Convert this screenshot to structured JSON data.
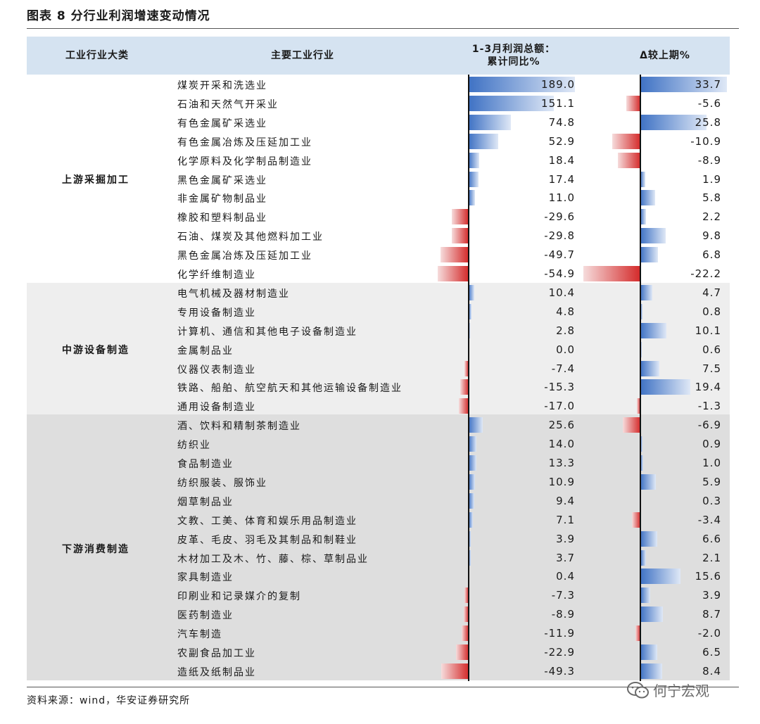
{
  "title": "图表 8 分行业利润增速变动情况",
  "headers": {
    "category": "工业行业大类",
    "industry": "主要工业行业",
    "col1_line1": "1-3月利润总额：",
    "col1_line2": "累计同比%",
    "col2": "Δ较上期%"
  },
  "groups": [
    {
      "label": "上游采掘加工",
      "rows": 11
    },
    {
      "label": "中游设备制造",
      "rows": 7
    },
    {
      "label": "下游消费制造",
      "rows": 14
    }
  ],
  "colors": {
    "positive": "#3f72c4",
    "negative": "#d42a2a",
    "header_bg": "#d5e3f1",
    "midstream_bg": "#eeeeee",
    "downstream_bg": "#dedede"
  },
  "chart_data": {
    "type": "table",
    "columns": [
      "工业行业大类",
      "主要工业行业",
      "1-3月利润总额：累计同比%",
      "Δ较上期%"
    ],
    "bar_scale": {
      "col1_max_abs": 189.0,
      "col2_max_abs": 33.7
    },
    "rows": [
      {
        "group": "上游采掘加工",
        "name": "煤炭开采和洗选业",
        "yoy": 189.0,
        "delta": 33.7
      },
      {
        "group": "上游采掘加工",
        "name": "石油和天然气开采业",
        "yoy": 151.1,
        "delta": -5.6
      },
      {
        "group": "上游采掘加工",
        "name": "有色金属矿采选业",
        "yoy": 74.8,
        "delta": 25.8
      },
      {
        "group": "上游采掘加工",
        "name": "有色金属冶炼及压延加工业",
        "yoy": 52.9,
        "delta": -10.9
      },
      {
        "group": "上游采掘加工",
        "name": "化学原料及化学制品制造业",
        "yoy": 18.4,
        "delta": -8.9
      },
      {
        "group": "上游采掘加工",
        "name": "黑色金属矿采选业",
        "yoy": 17.4,
        "delta": 1.9
      },
      {
        "group": "上游采掘加工",
        "name": "非金属矿物制品业",
        "yoy": 11.0,
        "delta": 5.8
      },
      {
        "group": "上游采掘加工",
        "name": "橡胶和塑料制品业",
        "yoy": -29.6,
        "delta": 2.2
      },
      {
        "group": "上游采掘加工",
        "name": "石油、煤炭及其他燃料加工业",
        "yoy": -29.8,
        "delta": 9.8
      },
      {
        "group": "上游采掘加工",
        "name": "黑色金属冶炼及压延加工业",
        "yoy": -49.7,
        "delta": 6.8
      },
      {
        "group": "上游采掘加工",
        "name": "化学纤维制造业",
        "yoy": -54.9,
        "delta": -22.2
      },
      {
        "group": "中游设备制造",
        "name": "电气机械及器材制造业",
        "yoy": 10.4,
        "delta": 4.7
      },
      {
        "group": "中游设备制造",
        "name": "专用设备制造业",
        "yoy": 4.8,
        "delta": 0.8
      },
      {
        "group": "中游设备制造",
        "name": "计算机、通信和其他电子设备制造业",
        "yoy": 2.8,
        "delta": 10.1
      },
      {
        "group": "中游设备制造",
        "name": "金属制品业",
        "yoy": 0.0,
        "delta": 0.6
      },
      {
        "group": "中游设备制造",
        "name": "仪器仪表制造业",
        "yoy": -7.4,
        "delta": 7.5
      },
      {
        "group": "中游设备制造",
        "name": "铁路、船舶、航空航天和其他运输设备制造业",
        "yoy": -15.3,
        "delta": 19.4
      },
      {
        "group": "中游设备制造",
        "name": "通用设备制造业",
        "yoy": -17.0,
        "delta": -1.3
      },
      {
        "group": "下游消费制造",
        "name": "酒、饮料和精制茶制造业",
        "yoy": 25.6,
        "delta": -6.9
      },
      {
        "group": "下游消费制造",
        "name": "纺织业",
        "yoy": 14.0,
        "delta": 0.9
      },
      {
        "group": "下游消费制造",
        "name": "食品制造业",
        "yoy": 13.3,
        "delta": 1.0
      },
      {
        "group": "下游消费制造",
        "name": "纺织服装、服饰业",
        "yoy": 10.9,
        "delta": 5.9
      },
      {
        "group": "下游消费制造",
        "name": "烟草制品业",
        "yoy": 9.4,
        "delta": 0.3
      },
      {
        "group": "下游消费制造",
        "name": "文教、工美、体育和娱乐用品制造业",
        "yoy": 7.1,
        "delta": -3.4
      },
      {
        "group": "下游消费制造",
        "name": "皮革、毛皮、羽毛及其制品和制鞋业",
        "yoy": 3.9,
        "delta": 6.6
      },
      {
        "group": "下游消费制造",
        "name": "木材加工及木、竹、藤、棕、草制品业",
        "yoy": 3.7,
        "delta": 2.1
      },
      {
        "group": "下游消费制造",
        "name": "家具制造业",
        "yoy": 0.4,
        "delta": 15.6
      },
      {
        "group": "下游消费制造",
        "name": "印刷业和记录媒介的复制",
        "yoy": -7.3,
        "delta": 3.9
      },
      {
        "group": "下游消费制造",
        "name": "医药制造业",
        "yoy": -8.9,
        "delta": 8.7
      },
      {
        "group": "下游消费制造",
        "name": "汽车制造",
        "yoy": -11.9,
        "delta": -2.0
      },
      {
        "group": "下游消费制造",
        "name": "农副食品加工业",
        "yoy": -22.9,
        "delta": 6.5
      },
      {
        "group": "下游消费制造",
        "name": "造纸及纸制品业",
        "yoy": -49.3,
        "delta": 8.4
      }
    ]
  },
  "source": "资料来源：wind，华安证券研究所",
  "watermark": {
    "icon": "wechat-icon",
    "text": "何宁宏观"
  }
}
